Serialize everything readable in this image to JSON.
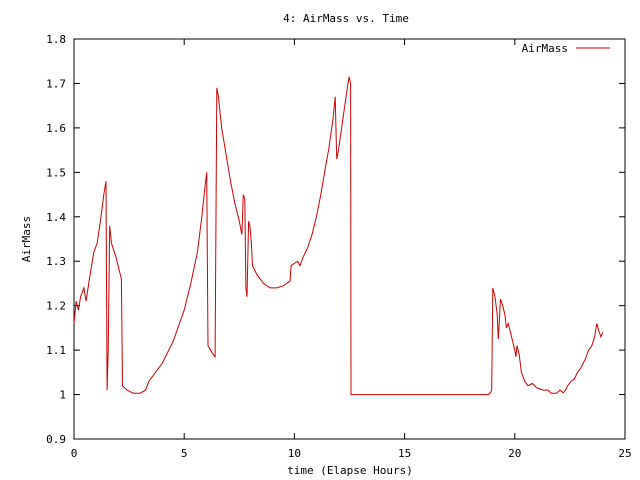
{
  "chart_data": {
    "type": "line",
    "title": "4: AirMass vs. Time",
    "xlabel": "time (Elapse Hours)",
    "ylabel": "AirMass",
    "xlim": [
      0,
      25
    ],
    "ylim": [
      0.9,
      1.8
    ],
    "x_ticks": [
      "0",
      "5",
      "10",
      "15",
      "20",
      "25"
    ],
    "y_ticks": [
      "0.9",
      "1",
      "1.1",
      "1.2",
      "1.3",
      "1.4",
      "1.5",
      "1.6",
      "1.7",
      "1.8"
    ],
    "grid": false,
    "legend_position": "top-right",
    "series": [
      {
        "name": "AirMass",
        "color": "#cc0000",
        "points": [
          [
            0.0,
            1.16
          ],
          [
            0.1,
            1.21
          ],
          [
            0.2,
            1.19
          ],
          [
            0.3,
            1.22
          ],
          [
            0.45,
            1.24
          ],
          [
            0.55,
            1.21
          ],
          [
            0.7,
            1.26
          ],
          [
            0.9,
            1.32
          ],
          [
            1.05,
            1.34
          ],
          [
            1.2,
            1.39
          ],
          [
            1.35,
            1.45
          ],
          [
            1.45,
            1.48
          ],
          [
            1.5,
            1.01
          ],
          [
            1.55,
            1.1
          ],
          [
            1.62,
            1.38
          ],
          [
            1.7,
            1.34
          ],
          [
            1.9,
            1.31
          ],
          [
            2.1,
            1.27
          ],
          [
            2.15,
            1.26
          ],
          [
            2.2,
            1.02
          ],
          [
            2.4,
            1.01
          ],
          [
            2.7,
            1.003
          ],
          [
            3.0,
            1.003
          ],
          [
            3.25,
            1.01
          ],
          [
            3.4,
            1.03
          ],
          [
            3.7,
            1.05
          ],
          [
            4.0,
            1.07
          ],
          [
            4.5,
            1.12
          ],
          [
            5.0,
            1.19
          ],
          [
            5.3,
            1.25
          ],
          [
            5.6,
            1.32
          ],
          [
            5.8,
            1.4
          ],
          [
            5.95,
            1.47
          ],
          [
            6.02,
            1.5
          ],
          [
            6.08,
            1.11
          ],
          [
            6.25,
            1.095
          ],
          [
            6.4,
            1.085
          ],
          [
            6.48,
            1.69
          ],
          [
            6.55,
            1.67
          ],
          [
            6.7,
            1.6
          ],
          [
            6.9,
            1.54
          ],
          [
            7.1,
            1.48
          ],
          [
            7.3,
            1.43
          ],
          [
            7.5,
            1.39
          ],
          [
            7.62,
            1.36
          ],
          [
            7.68,
            1.45
          ],
          [
            7.75,
            1.44
          ],
          [
            7.8,
            1.24
          ],
          [
            7.85,
            1.22
          ],
          [
            7.92,
            1.39
          ],
          [
            7.98,
            1.38
          ],
          [
            8.05,
            1.34
          ],
          [
            8.1,
            1.29
          ],
          [
            8.3,
            1.27
          ],
          [
            8.6,
            1.25
          ],
          [
            8.9,
            1.24
          ],
          [
            9.2,
            1.24
          ],
          [
            9.5,
            1.245
          ],
          [
            9.8,
            1.255
          ],
          [
            9.85,
            1.29
          ],
          [
            10.0,
            1.295
          ],
          [
            10.15,
            1.3
          ],
          [
            10.25,
            1.29
          ],
          [
            10.4,
            1.31
          ],
          [
            10.6,
            1.33
          ],
          [
            10.8,
            1.36
          ],
          [
            11.0,
            1.4
          ],
          [
            11.2,
            1.45
          ],
          [
            11.4,
            1.51
          ],
          [
            11.55,
            1.55
          ],
          [
            11.75,
            1.62
          ],
          [
            11.85,
            1.67
          ],
          [
            11.92,
            1.53
          ],
          [
            12.0,
            1.55
          ],
          [
            12.2,
            1.62
          ],
          [
            12.4,
            1.69
          ],
          [
            12.48,
            1.715
          ],
          [
            12.55,
            1.7
          ],
          [
            12.57,
            1.0
          ],
          [
            13.0,
            1.0
          ],
          [
            14.0,
            1.0
          ],
          [
            15.0,
            1.0
          ],
          [
            16.0,
            1.0
          ],
          [
            17.0,
            1.0
          ],
          [
            18.0,
            1.0
          ],
          [
            18.8,
            1.0
          ],
          [
            18.9,
            1.005
          ],
          [
            18.95,
            1.01
          ],
          [
            19.0,
            1.24
          ],
          [
            19.1,
            1.22
          ],
          [
            19.2,
            1.18
          ],
          [
            19.25,
            1.125
          ],
          [
            19.35,
            1.215
          ],
          [
            19.45,
            1.2
          ],
          [
            19.55,
            1.18
          ],
          [
            19.62,
            1.15
          ],
          [
            19.7,
            1.16
          ],
          [
            19.8,
            1.14
          ],
          [
            19.9,
            1.12
          ],
          [
            20.0,
            1.1
          ],
          [
            20.05,
            1.085
          ],
          [
            20.1,
            1.11
          ],
          [
            20.2,
            1.09
          ],
          [
            20.3,
            1.05
          ],
          [
            20.45,
            1.03
          ],
          [
            20.6,
            1.02
          ],
          [
            20.8,
            1.025
          ],
          [
            21.0,
            1.015
          ],
          [
            21.3,
            1.01
          ],
          [
            21.5,
            1.01
          ],
          [
            21.65,
            1.003
          ],
          [
            21.9,
            1.003
          ],
          [
            22.05,
            1.01
          ],
          [
            22.2,
            1.004
          ],
          [
            22.3,
            1.01
          ],
          [
            22.4,
            1.02
          ],
          [
            22.55,
            1.03
          ],
          [
            22.7,
            1.035
          ],
          [
            22.85,
            1.05
          ],
          [
            23.0,
            1.06
          ],
          [
            23.2,
            1.08
          ],
          [
            23.35,
            1.1
          ],
          [
            23.5,
            1.11
          ],
          [
            23.62,
            1.13
          ],
          [
            23.72,
            1.16
          ],
          [
            23.8,
            1.145
          ],
          [
            23.9,
            1.13
          ],
          [
            24.0,
            1.14
          ]
        ]
      }
    ]
  }
}
